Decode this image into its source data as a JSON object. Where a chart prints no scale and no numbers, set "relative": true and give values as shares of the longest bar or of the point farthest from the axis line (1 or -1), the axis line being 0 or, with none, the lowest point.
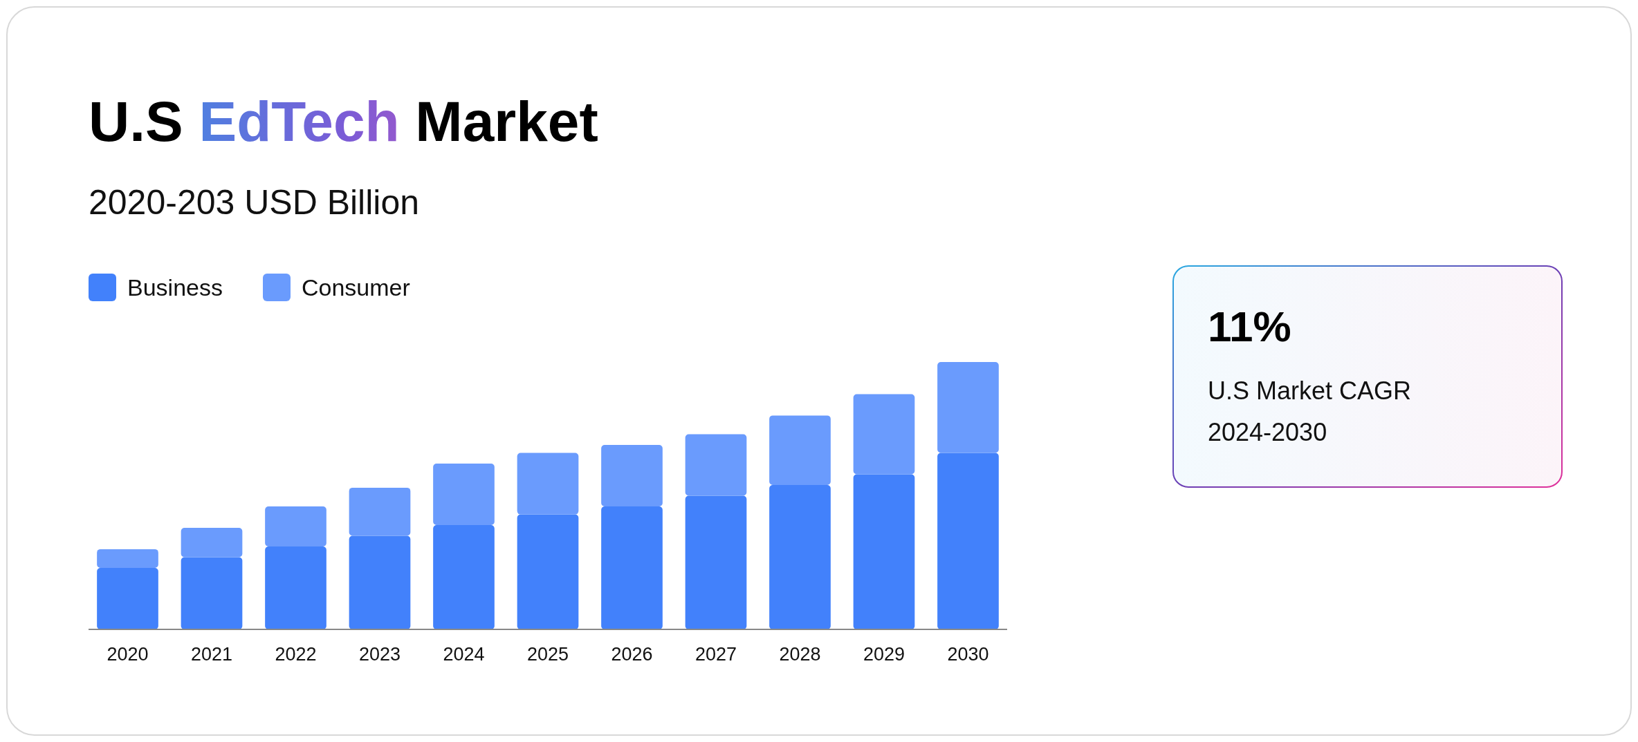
{
  "chart_data": [
    {
      "type": "bar",
      "title": "U.S EdTech Market",
      "subtitle": "2020-203 USD Billion",
      "relative": true,
      "stacked": true,
      "legend": "top left",
      "categories": [
        "2020",
        "2021",
        "2022",
        "2023",
        "2024",
        "2025",
        "2026",
        "2027",
        "2028",
        "2029",
        "2030"
      ],
      "series": [
        {
          "name": "Business",
          "color": "#4281fb",
          "values": [
            0.23,
            0.27,
            0.31,
            0.35,
            0.39,
            0.43,
            0.46,
            0.5,
            0.54,
            0.58,
            0.66
          ]
        },
        {
          "name": "Consumer",
          "color": "#6a9bfd",
          "values": [
            0.07,
            0.11,
            0.15,
            0.18,
            0.23,
            0.23,
            0.23,
            0.23,
            0.26,
            0.3,
            0.34
          ]
        }
      ]
    },
    {
      "type": "other",
      "title": "11%",
      "annotations": [
        "U.S Market CAGR",
        "2024-2030"
      ]
    }
  ]
}
